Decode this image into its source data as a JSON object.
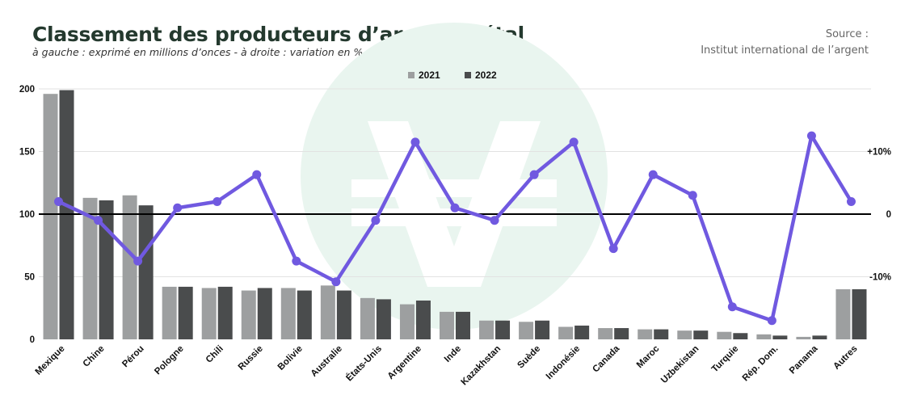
{
  "title": "Classement des producteurs d’argent métal",
  "subtitle": "à gauche : exprimé en millions d’onces - à droite : variation en %",
  "source": {
    "line1": "Source :",
    "line2": "Institut international de l’argent"
  },
  "colors": {
    "s2021": "#9d9fa0",
    "s2022": "#4a4c4d",
    "line": "#7059e0",
    "grid": "#e2e2e2",
    "baseline": "#000000",
    "watermark": "#e9f5ef"
  },
  "chart_data": {
    "type": "bar",
    "categories": [
      "Mexique",
      "Chine",
      "Pérou",
      "Pologne",
      "Chili",
      "Russie",
      "Bolivie",
      "Australie",
      "États-Unis",
      "Argentine",
      "Inde",
      "Kazakhstan",
      "Suède",
      "Indonésie",
      "Canada",
      "Maroc",
      "Uzbekistan",
      "Turquie",
      "Rép. Dom.",
      "Panama",
      "Autres"
    ],
    "series": [
      {
        "name": "2021",
        "values": [
          196,
          113,
          115,
          42,
          41,
          39,
          41,
          43,
          33,
          28,
          22,
          15,
          14,
          10,
          9,
          8,
          7,
          6,
          4,
          2,
          40
        ]
      },
      {
        "name": "2022",
        "values": [
          199,
          111,
          107,
          42,
          42,
          41,
          39,
          39,
          32,
          31,
          22,
          15,
          15,
          11,
          9,
          8,
          7,
          5,
          3,
          3,
          40
        ]
      }
    ],
    "line": {
      "name": "variation en %",
      "values": [
        2,
        -1,
        -7.5,
        1,
        2,
        6.3,
        -7.5,
        -10.8,
        -1,
        11.5,
        1,
        -1,
        6.3,
        11.5,
        -5.5,
        6.3,
        3,
        -14.8,
        -17,
        12.5,
        2
      ]
    },
    "ylim": [
      0,
      200
    ],
    "yticks": [
      0,
      50,
      100,
      150,
      200
    ],
    "y2lim": [
      -20,
      20
    ],
    "y2ticks": [
      {
        "value": 10,
        "label": "+10%"
      },
      {
        "value": 0,
        "label": "0"
      },
      {
        "value": -10,
        "label": "-10%"
      }
    ],
    "grid": true,
    "legend_position": "top-center"
  }
}
